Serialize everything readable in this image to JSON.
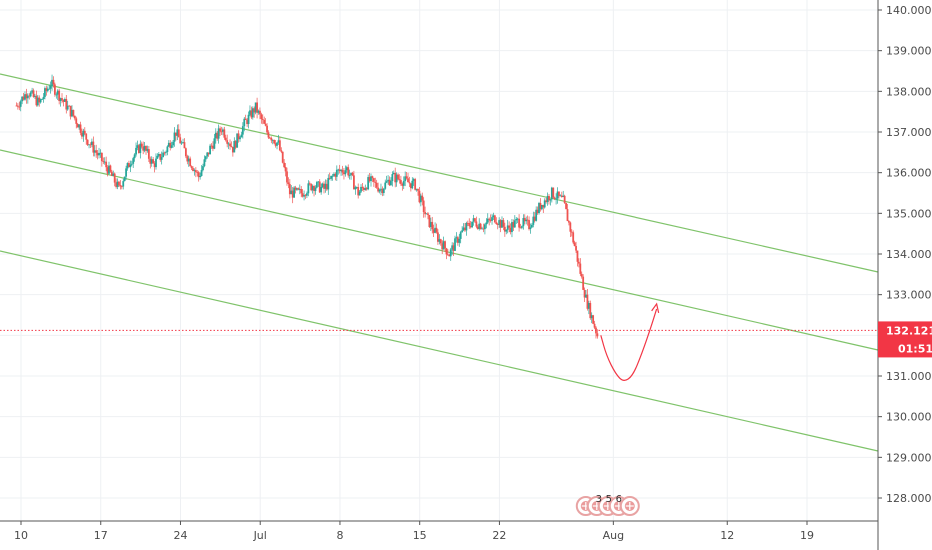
{
  "chart_data": {
    "type": "candlestick",
    "y_axis": {
      "min": 127.5,
      "max": 140.2,
      "ticks": [
        128,
        129,
        130,
        131,
        132,
        133,
        134,
        135,
        136,
        137,
        138,
        139,
        140
      ],
      "tick_labels": [
        "128.000",
        "129.000",
        "130.000",
        "131.000",
        "132.000",
        "133.000",
        "134.000",
        "135.000",
        "136.000",
        "137.000",
        "138.000",
        "139.000",
        "140.000"
      ]
    },
    "x_axis": {
      "min_day": 9,
      "max_day": 32.4,
      "ticks": [
        {
          "day": 9.4,
          "label": "10"
        },
        {
          "day": 16.4,
          "label": "17"
        },
        {
          "day": 23.4,
          "label": "24"
        },
        {
          "day": 30.4,
          "label": "Jul"
        },
        {
          "day": 37.4,
          "label": "8"
        },
        {
          "day": 44.4,
          "label": "15"
        },
        {
          "day": 51.4,
          "label": "22"
        },
        {
          "day": 61.4,
          "label": "Aug"
        },
        {
          "day": 71.4,
          "label": "12"
        },
        {
          "day": 78.4,
          "label": "19"
        }
      ]
    },
    "current_price": {
      "value": 132.121,
      "label": "132.121",
      "timer": "01:51",
      "color": "#f23645"
    },
    "candle_colors": {
      "up": "#26a69a",
      "down": "#ef5350"
    },
    "price_path": [
      [
        9,
        137.65
      ],
      [
        10,
        138.0
      ],
      [
        11,
        137.7
      ],
      [
        12,
        138.2
      ],
      [
        13,
        137.8
      ],
      [
        14,
        137.4
      ],
      [
        15,
        136.9
      ],
      [
        16,
        136.5
      ],
      [
        17,
        136.1
      ],
      [
        18,
        135.6
      ],
      [
        19,
        136.3
      ],
      [
        20,
        136.7
      ],
      [
        21,
        136.2
      ],
      [
        22,
        136.5
      ],
      [
        23,
        137.0
      ],
      [
        24,
        136.4
      ],
      [
        25,
        135.9
      ],
      [
        26,
        136.6
      ],
      [
        27,
        137.1
      ],
      [
        28,
        136.6
      ],
      [
        29,
        137.2
      ],
      [
        30,
        137.6
      ],
      [
        31,
        137.0
      ],
      [
        32,
        136.7
      ],
      [
        33,
        135.5
      ],
      [
        34,
        135.5
      ],
      [
        35,
        135.7
      ],
      [
        36,
        135.6
      ],
      [
        37,
        136.0
      ],
      [
        38,
        136.1
      ],
      [
        39,
        135.5
      ],
      [
        40,
        135.8
      ],
      [
        41,
        135.6
      ],
      [
        42,
        135.9
      ],
      [
        43,
        135.8
      ],
      [
        44,
        135.7
      ],
      [
        45,
        134.9
      ],
      [
        46,
        134.4
      ],
      [
        47,
        134.0
      ],
      [
        48,
        134.5
      ],
      [
        49,
        134.8
      ],
      [
        50,
        134.7
      ],
      [
        51,
        134.9
      ],
      [
        52,
        134.6
      ],
      [
        53,
        134.8
      ],
      [
        54,
        134.7
      ],
      [
        55,
        135.2
      ],
      [
        56,
        135.5
      ],
      [
        57,
        135.3
      ],
      [
        58,
        134.2
      ],
      [
        59,
        132.9
      ],
      [
        60,
        132.0
      ]
    ],
    "channel_lines": [
      {
        "x1_day": 9,
        "y1": 138.4,
        "x2_day": 32.4,
        "y2": 133.5
      },
      {
        "x1_day": 9,
        "y1": 136.5,
        "x2_day": 32.4,
        "y2": 131.45
      },
      {
        "x1_day": 9,
        "y1": 134.1,
        "x2_day": 32.4,
        "y2": 129.15
      }
    ],
    "projection_path": [
      [
        60.3,
        132.0
      ],
      [
        60.8,
        131.5
      ],
      [
        61.6,
        131.05
      ],
      [
        62.3,
        130.85
      ],
      [
        63.1,
        131.0
      ],
      [
        63.9,
        131.55
      ],
      [
        64.7,
        132.2
      ],
      [
        65.2,
        132.65
      ]
    ],
    "channel_color": "#7fc36a",
    "projection_color": "#f23645",
    "event_markers": {
      "day": 61.0,
      "labels": [
        "3",
        "5",
        "6"
      ]
    }
  }
}
